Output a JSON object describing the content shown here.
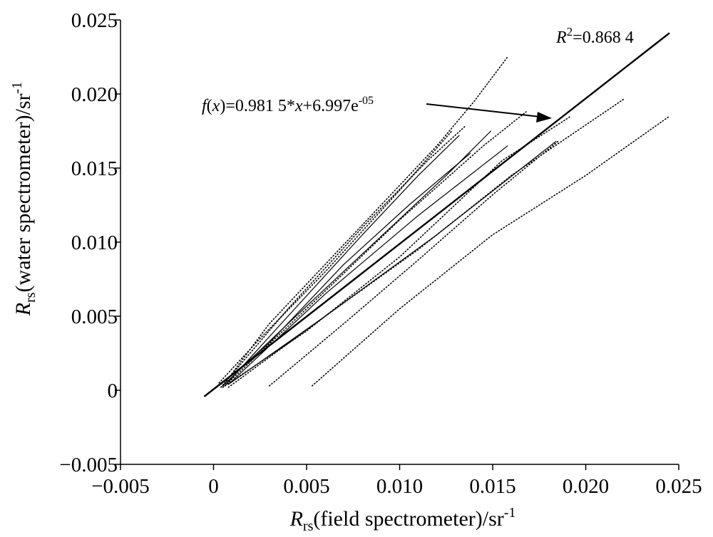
{
  "chart_data": {
    "type": "scatter",
    "xaxis": {
      "label_main": "R",
      "label_sub": "rs",
      "label_rest": "(field spectrometer)/sr",
      "label_sup": "-1",
      "lim": [
        -0.005,
        0.025
      ],
      "ticks": [
        -0.005,
        0,
        0.005,
        0.01,
        0.015,
        0.02,
        0.025
      ],
      "tick_labels": [
        "−0.005",
        "0",
        "0.005",
        "0.010",
        "0.015",
        "0.020",
        "0.025"
      ]
    },
    "yaxis": {
      "label_main": "R",
      "label_sub": "rs",
      "label_rest": "(water spectrometer)/sr",
      "label_sup": "-1",
      "lim": [
        -0.005,
        0.025
      ],
      "ticks": [
        -0.005,
        0,
        0.005,
        0.01,
        0.015,
        0.02,
        0.025
      ],
      "tick_labels": [
        "−0.005",
        "0",
        "0.005",
        "0.010",
        "0.015",
        "0.020",
        "0.025"
      ]
    },
    "grid": false,
    "fit_line": {
      "slope": 0.9815,
      "intercept": 6.997e-05,
      "x_range": [
        -0.0005,
        0.0245
      ]
    },
    "annotations": {
      "r2": {
        "prefix": "R",
        "sup": "2",
        "text": "=0.868 4"
      },
      "equation": {
        "f": "f",
        "open": "(",
        "x": "x",
        "close": ")",
        "mid": "=0.981 5*",
        "x2": "x",
        "tail": "+6.997e",
        "sup": "-05"
      }
    },
    "series": [
      {
        "style": "dotted",
        "points": [
          [
            0.0005,
            0.0003
          ],
          [
            0.003,
            0.0045
          ],
          [
            0.006,
            0.0085
          ],
          [
            0.009,
            0.0125
          ],
          [
            0.012,
            0.0165
          ],
          [
            0.014,
            0.0195
          ],
          [
            0.0158,
            0.0225
          ]
        ]
      },
      {
        "style": "solid",
        "points": [
          [
            0.0006,
            0.0003
          ],
          [
            0.004,
            0.005
          ],
          [
            0.008,
            0.0105
          ],
          [
            0.011,
            0.0145
          ],
          [
            0.0132,
            0.0172
          ]
        ]
      },
      {
        "style": "dotted",
        "points": [
          [
            0.0004,
            0.0002
          ],
          [
            0.004,
            0.0055
          ],
          [
            0.008,
            0.011
          ],
          [
            0.0115,
            0.0155
          ],
          [
            0.0135,
            0.0178
          ]
        ]
      },
      {
        "style": "solid",
        "points": [
          [
            0.0005,
            0.0003
          ],
          [
            0.004,
            0.0045
          ],
          [
            0.0085,
            0.0098
          ],
          [
            0.0125,
            0.0145
          ],
          [
            0.0149,
            0.0175
          ]
        ]
      },
      {
        "style": "dotted",
        "points": [
          [
            0.0006,
            0.0003
          ],
          [
            0.005,
            0.0055
          ],
          [
            0.01,
            0.0115
          ],
          [
            0.0145,
            0.0165
          ],
          [
            0.0168,
            0.0188
          ]
        ]
      },
      {
        "style": "solid",
        "points": [
          [
            0.0008,
            0.0004
          ],
          [
            0.006,
            0.0065
          ],
          [
            0.011,
            0.0118
          ],
          [
            0.0158,
            0.0165
          ]
        ]
      },
      {
        "style": "dotted",
        "points": [
          [
            0.0005,
            0.0002
          ],
          [
            0.005,
            0.004
          ],
          [
            0.01,
            0.009
          ],
          [
            0.0155,
            0.0155
          ],
          [
            0.0192,
            0.0185
          ]
        ]
      },
      {
        "style": "dotted",
        "points": [
          [
            0.0008,
            0.0002
          ],
          [
            0.006,
            0.005
          ],
          [
            0.011,
            0.0095
          ],
          [
            0.016,
            0.0145
          ],
          [
            0.0221,
            0.0197
          ]
        ]
      },
      {
        "style": "solid",
        "points": [
          [
            0.0008,
            0.0004
          ],
          [
            0.006,
            0.005
          ],
          [
            0.012,
            0.0105
          ],
          [
            0.0184,
            0.0168
          ]
        ]
      },
      {
        "style": "dotted",
        "points": [
          [
            0.003,
            0.0003
          ],
          [
            0.007,
            0.0045
          ],
          [
            0.011,
            0.0088
          ],
          [
            0.015,
            0.0132
          ],
          [
            0.0185,
            0.0168
          ]
        ]
      },
      {
        "style": "dotted",
        "points": [
          [
            0.0053,
            0.0003
          ],
          [
            0.01,
            0.0055
          ],
          [
            0.015,
            0.0105
          ],
          [
            0.02,
            0.0145
          ],
          [
            0.0245,
            0.0185
          ]
        ]
      },
      {
        "style": "dotted",
        "points": [
          [
            0.0003,
            0.0005
          ],
          [
            0.0025,
            0.0035
          ],
          [
            0.006,
            0.008
          ],
          [
            0.01,
            0.0135
          ],
          [
            0.0128,
            0.0175
          ]
        ]
      },
      {
        "style": "solid",
        "points": [
          [
            0.0004,
            0.0004
          ],
          [
            0.003,
            0.0032
          ],
          [
            0.007,
            0.0085
          ],
          [
            0.0105,
            0.0125
          ],
          [
            0.0138,
            0.016
          ]
        ]
      }
    ]
  }
}
